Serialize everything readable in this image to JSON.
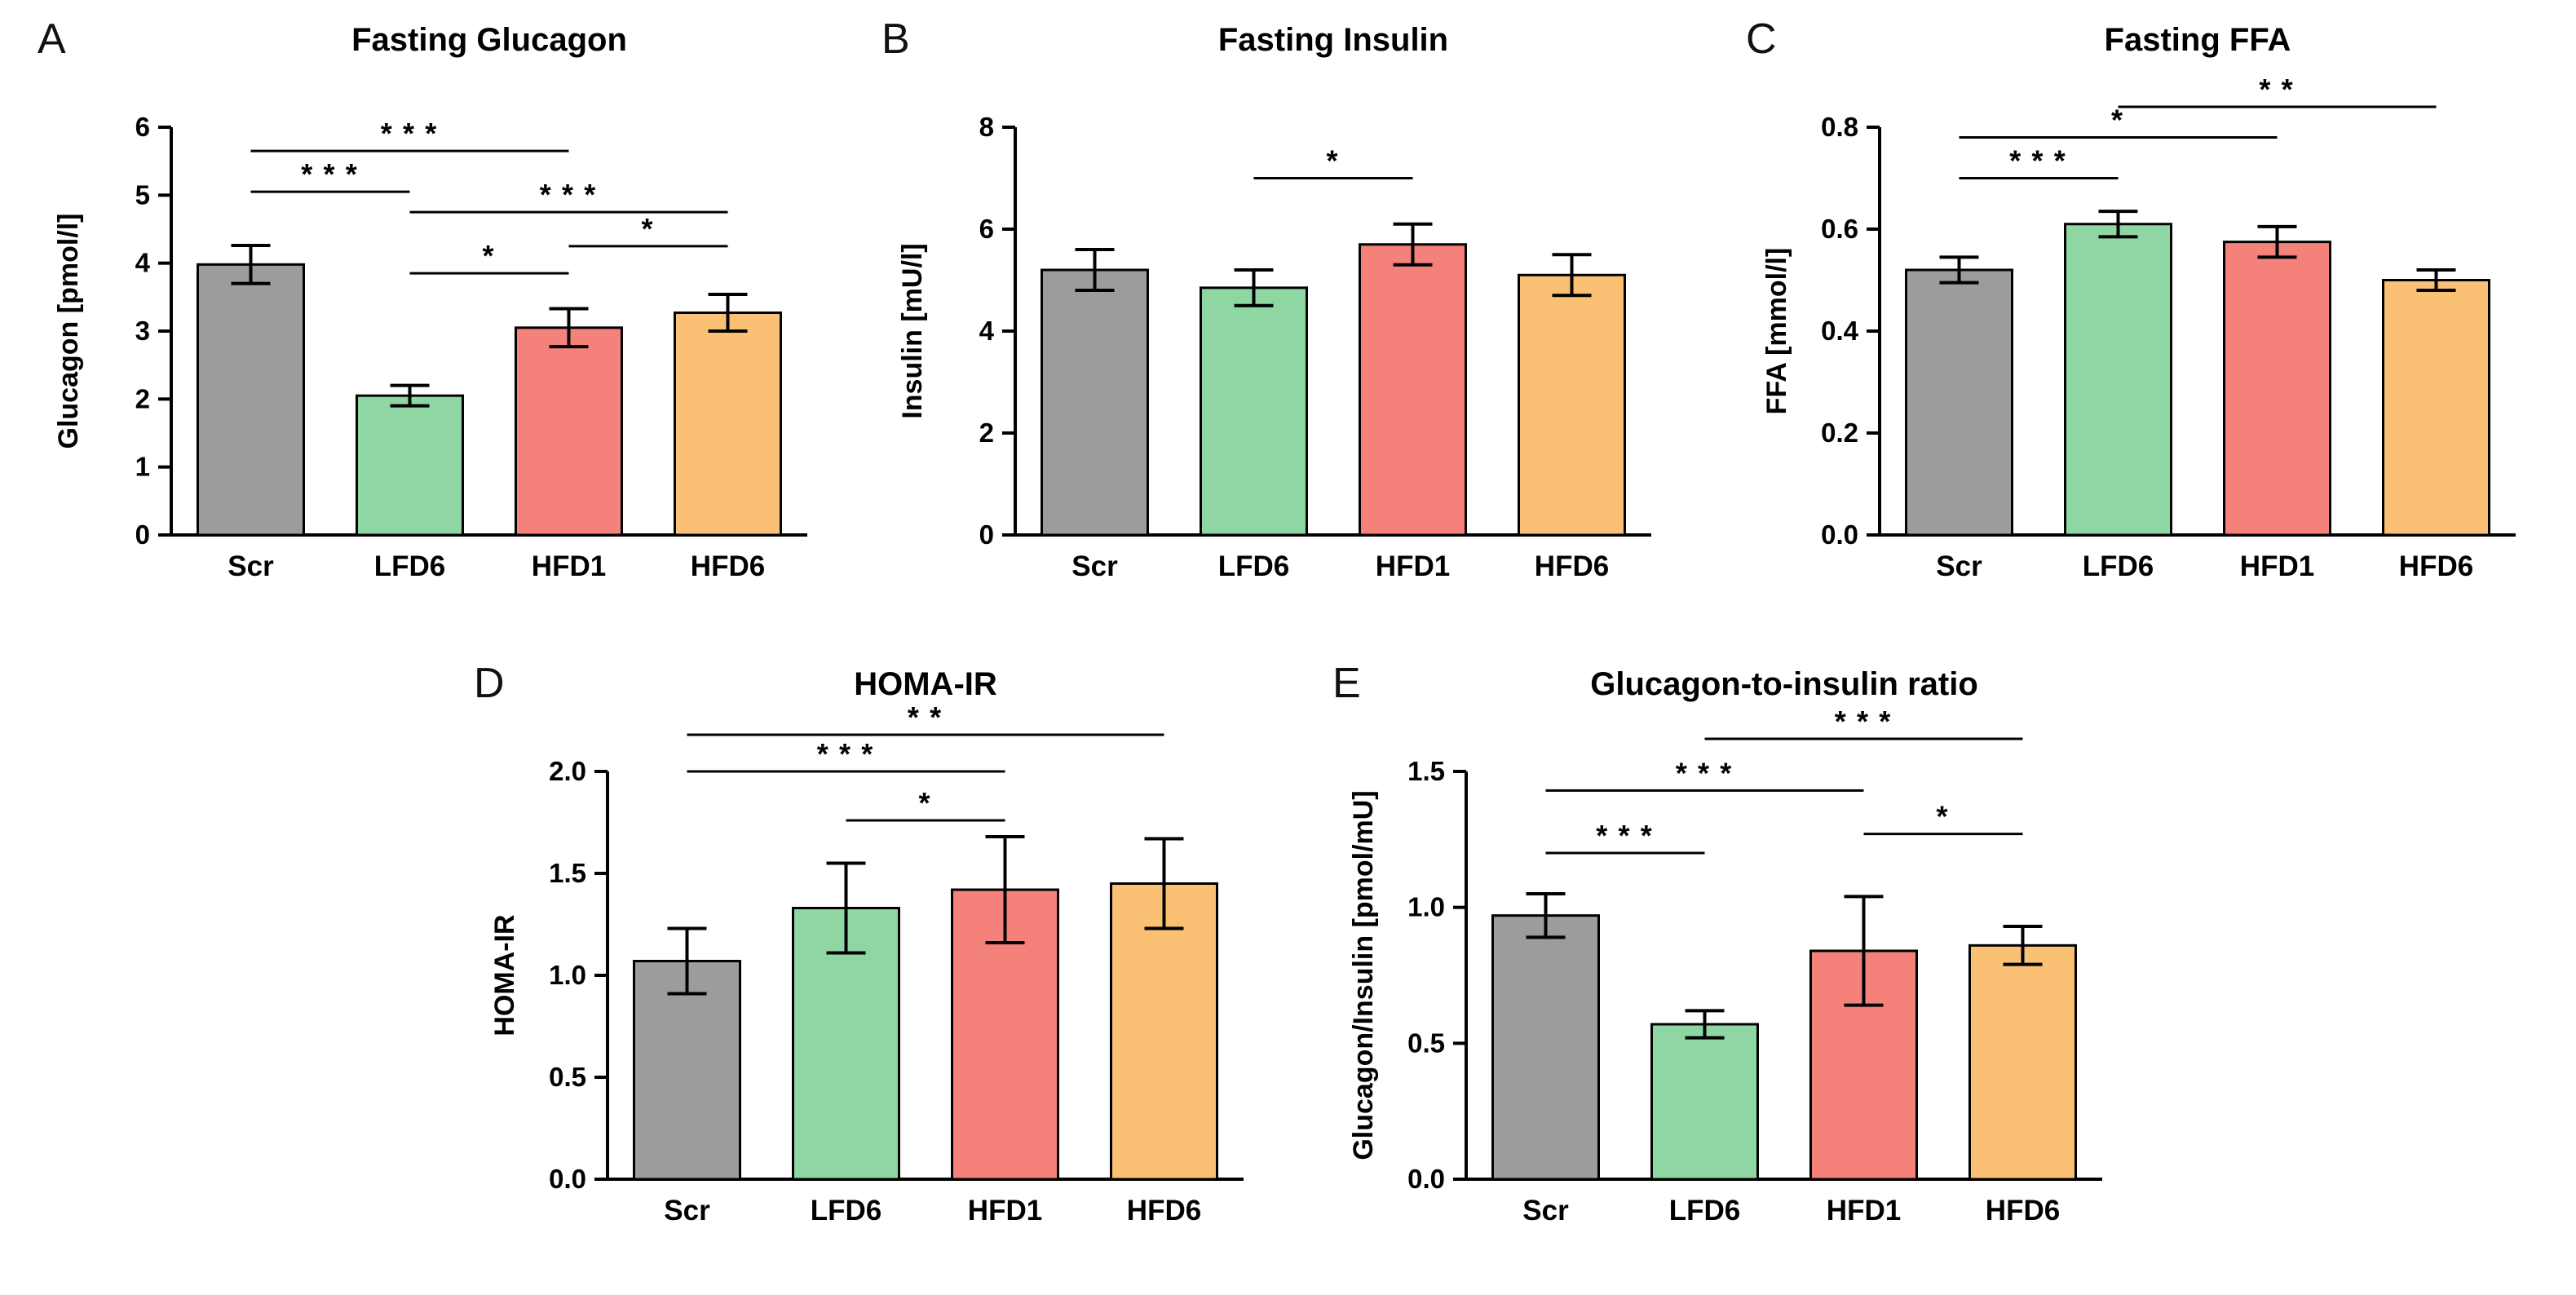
{
  "chart_data": {
    "type": "bar",
    "layout": "five-panel scientific figure, error bars (SEM), significance brackets",
    "categories": [
      "Scr",
      "LFD6",
      "HFD1",
      "HFD6"
    ],
    "bar_colors": {
      "Scr": "#9c9c9c",
      "LFD6": "#8fd7a2",
      "HFD1": "#f5817b",
      "HFD6": "#fac175"
    },
    "bar_outline_color": "#000000",
    "panels": [
      {
        "label": "A",
        "title": "Fasting Glucagon",
        "ylabel": "Glucagon [pmol/l]",
        "ylim": [
          0,
          6
        ],
        "yticks": [
          0,
          1,
          2,
          3,
          4,
          5,
          6
        ],
        "ytick_labels": [
          "0",
          "1",
          "2",
          "3",
          "4",
          "5",
          "6"
        ],
        "values": [
          3.98,
          2.05,
          3.05,
          3.27
        ],
        "errors": [
          0.28,
          0.15,
          0.28,
          0.27
        ],
        "significance": [
          {
            "group1": "Scr",
            "group2": "HFD1",
            "stars": "***",
            "y": 5.65
          },
          {
            "group1": "Scr",
            "group2": "LFD6",
            "stars": "***",
            "y": 5.05
          },
          {
            "group1": "LFD6",
            "group2": "HFD6",
            "stars": "***",
            "y": 4.75
          },
          {
            "group1": "HFD1",
            "group2": "HFD6",
            "stars": "*",
            "y": 4.25
          },
          {
            "group1": "LFD6",
            "group2": "HFD1",
            "stars": "*",
            "y": 3.85
          }
        ]
      },
      {
        "label": "B",
        "title": "Fasting Insulin",
        "ylabel": "Insulin [mU/l]",
        "ylim": [
          0,
          8
        ],
        "yticks": [
          0,
          2,
          4,
          6,
          8
        ],
        "ytick_labels": [
          "0",
          "2",
          "4",
          "6",
          "8"
        ],
        "values": [
          5.2,
          4.85,
          5.7,
          5.1
        ],
        "errors": [
          0.4,
          0.35,
          0.4,
          0.4
        ],
        "significance": [
          {
            "group1": "LFD6",
            "group2": "HFD1",
            "stars": "*",
            "y": 7.0
          }
        ]
      },
      {
        "label": "C",
        "title": "Fasting FFA",
        "ylabel": "FFA [mmol/l]",
        "ylim": [
          0,
          0.8
        ],
        "yticks": [
          0,
          0.2,
          0.4,
          0.6,
          0.8
        ],
        "ytick_labels": [
          "0.0",
          "0.2",
          "0.4",
          "0.6",
          "0.8"
        ],
        "values": [
          0.52,
          0.61,
          0.575,
          0.5
        ],
        "errors": [
          0.025,
          0.025,
          0.03,
          0.02
        ],
        "significance": [
          {
            "group1": "LFD6",
            "group2": "HFD6",
            "stars": "**",
            "y": 0.84
          },
          {
            "group1": "Scr",
            "group2": "HFD1",
            "stars": "*",
            "y": 0.78
          },
          {
            "group1": "Scr",
            "group2": "LFD6",
            "stars": "***",
            "y": 0.7
          }
        ]
      },
      {
        "label": "D",
        "title": "HOMA-IR",
        "ylabel": "HOMA-IR",
        "ylim": [
          0,
          2
        ],
        "yticks": [
          0,
          0.5,
          1,
          1.5,
          2
        ],
        "ytick_labels": [
          "0.0",
          "0.5",
          "1.0",
          "1.5",
          "2.0"
        ],
        "values": [
          1.07,
          1.33,
          1.42,
          1.45
        ],
        "errors": [
          0.16,
          0.22,
          0.26,
          0.22
        ],
        "significance": [
          {
            "group1": "Scr",
            "group2": "HFD6",
            "stars": "**",
            "y": 2.18
          },
          {
            "group1": "Scr",
            "group2": "HFD1",
            "stars": "***",
            "y": 2.0
          },
          {
            "group1": "LFD6",
            "group2": "HFD1",
            "stars": "*",
            "y": 1.76
          }
        ]
      },
      {
        "label": "E",
        "title": "Glucagon-to-insulin ratio",
        "ylabel": "Glucagon/Insulin [pmol/mU]",
        "ylim": [
          0,
          1.5
        ],
        "yticks": [
          0,
          0.5,
          1,
          1.5
        ],
        "ytick_labels": [
          "0.0",
          "0.5",
          "1.0",
          "1.5"
        ],
        "values": [
          0.97,
          0.57,
          0.84,
          0.86
        ],
        "errors": [
          0.08,
          0.05,
          0.2,
          0.07
        ],
        "significance": [
          {
            "group1": "LFD6",
            "group2": "HFD6",
            "stars": "***",
            "y": 1.62
          },
          {
            "group1": "Scr",
            "group2": "HFD1",
            "stars": "***",
            "y": 1.43
          },
          {
            "group1": "HFD1",
            "group2": "HFD6",
            "stars": "*",
            "y": 1.27
          },
          {
            "group1": "Scr",
            "group2": "LFD6",
            "stars": "***",
            "y": 1.2
          }
        ]
      }
    ]
  }
}
